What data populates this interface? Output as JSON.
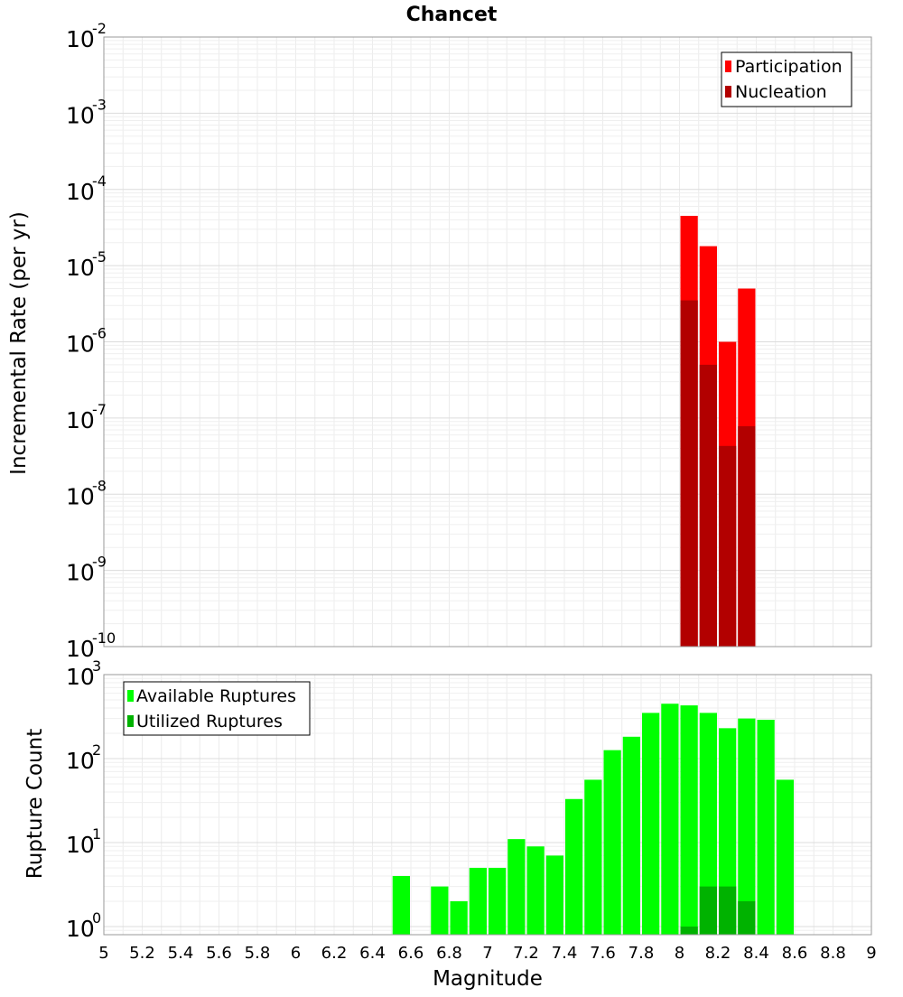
{
  "chart_data": [
    {
      "type": "bar",
      "title": "Chancet",
      "xlabel": "",
      "ylabel": "Incremental Rate (per yr)",
      "yscale": "log",
      "xlim": [
        5,
        9
      ],
      "ylim": [
        1e-10,
        0.01
      ],
      "grid": true,
      "bar_width": 0.1,
      "legend": {
        "placement": "top-right",
        "entries": [
          "Participation",
          "Nucleation"
        ]
      },
      "x": [
        8.05,
        8.15,
        8.25,
        8.35
      ],
      "series": [
        {
          "name": "Participation",
          "color": "#ff0000",
          "values": [
            4.5e-05,
            1.8e-05,
            1e-06,
            5e-06
          ]
        },
        {
          "name": "Nucleation",
          "color": "#b20000",
          "values": [
            3.5e-06,
            5e-07,
            4.3e-08,
            7.8e-08
          ]
        }
      ],
      "y_ticks": [
        {
          "base": "10",
          "exp": "-2",
          "value": 0.01
        },
        {
          "base": "10",
          "exp": "-3",
          "value": 0.001
        },
        {
          "base": "10",
          "exp": "-4",
          "value": 0.0001
        },
        {
          "base": "10",
          "exp": "-5",
          "value": 1e-05
        },
        {
          "base": "10",
          "exp": "-6",
          "value": 1e-06
        },
        {
          "base": "10",
          "exp": "-7",
          "value": 1e-07
        },
        {
          "base": "10",
          "exp": "-8",
          "value": 1e-08
        },
        {
          "base": "10",
          "exp": "-9",
          "value": 1e-09
        },
        {
          "base": "10",
          "exp": "-10",
          "value": 1e-10
        }
      ]
    },
    {
      "type": "bar",
      "title": "",
      "xlabel": "Magnitude",
      "ylabel": "Rupture Count",
      "yscale": "log",
      "xlim": [
        5,
        9
      ],
      "ylim": [
        0.8,
        1000
      ],
      "grid": true,
      "bar_width": 0.1,
      "legend": {
        "placement": "top-left",
        "entries": [
          "Available Ruptures",
          "Utilized Ruptures"
        ]
      },
      "x": [
        6.55,
        6.75,
        6.85,
        6.95,
        7.05,
        7.15,
        7.25,
        7.35,
        7.45,
        7.55,
        7.65,
        7.75,
        7.85,
        7.95,
        8.05,
        8.15,
        8.25,
        8.35,
        8.45,
        8.55
      ],
      "series": [
        {
          "name": "Available Ruptures",
          "color": "#00ff00",
          "values": [
            4,
            3,
            2,
            5,
            5,
            11,
            9,
            7,
            33,
            56,
            126,
            182,
            350,
            450,
            430,
            350,
            230,
            300,
            290,
            56
          ]
        },
        {
          "name": "Utilized Ruptures",
          "color": "#00b200",
          "values": [
            0,
            0,
            0,
            0,
            0,
            0,
            0,
            0,
            0,
            0,
            0,
            0,
            0,
            0,
            1,
            3,
            3,
            2,
            0,
            0
          ]
        }
      ],
      "x_ticks": [
        "5",
        "5.2",
        "5.4",
        "5.6",
        "5.8",
        "6",
        "6.2",
        "6.4",
        "6.6",
        "6.8",
        "7",
        "7.2",
        "7.4",
        "7.6",
        "7.8",
        "8",
        "8.2",
        "8.4",
        "8.6",
        "8.8",
        "9"
      ],
      "y_ticks": [
        {
          "base": "10",
          "exp": "3",
          "value": 1000
        },
        {
          "base": "10",
          "exp": "2",
          "value": 100
        },
        {
          "base": "10",
          "exp": "1",
          "value": 10
        },
        {
          "base": "10",
          "exp": "0",
          "value": 1
        }
      ]
    }
  ]
}
